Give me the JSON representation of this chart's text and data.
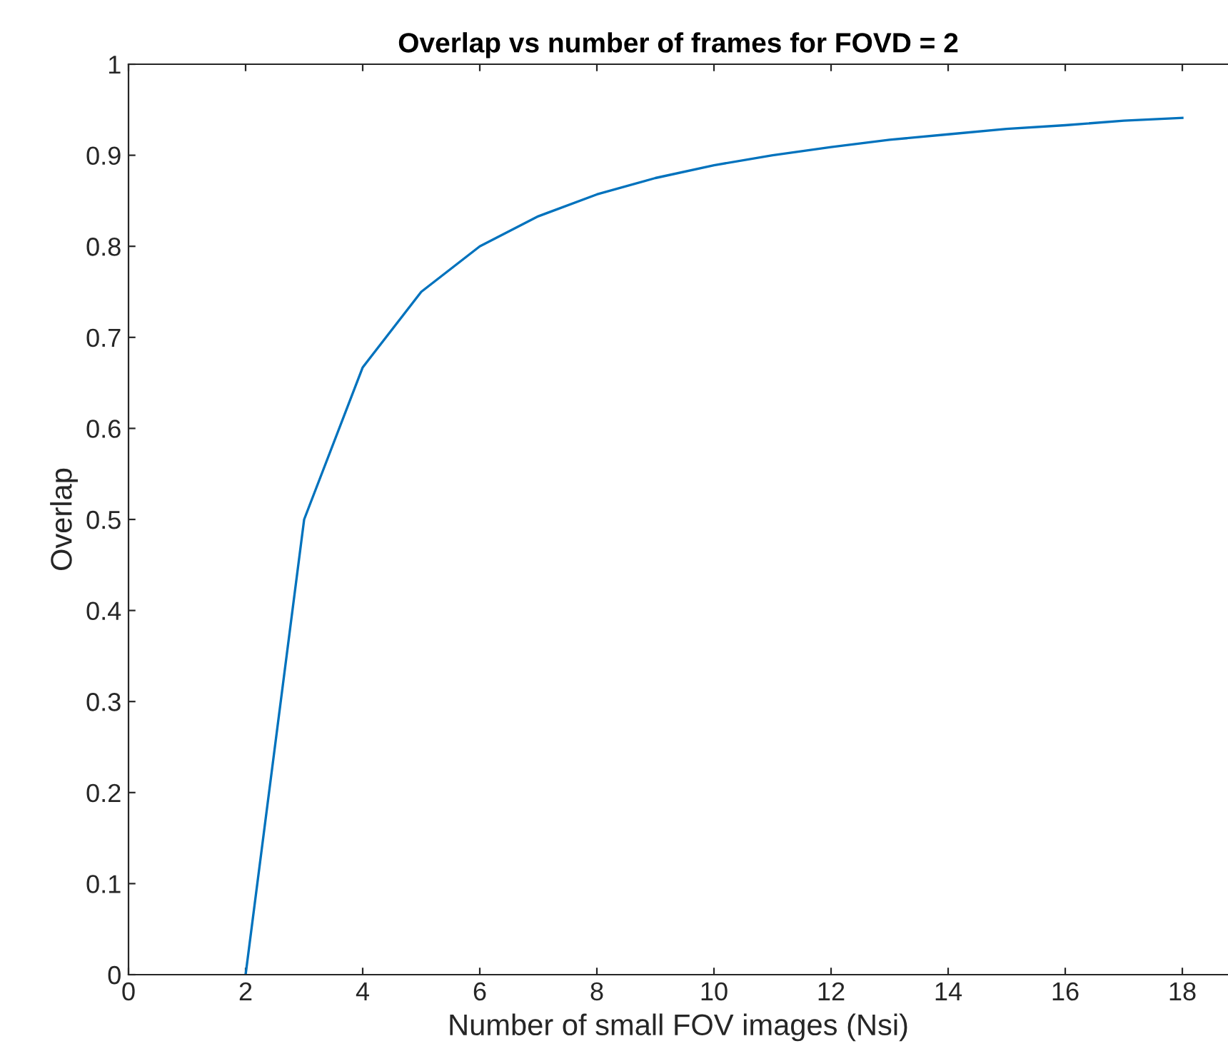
{
  "chart_data": {
    "type": "line",
    "title": "Overlap vs number of frames for FOVD = 2",
    "xlabel": "Number of small FOV images (Nsi)",
    "ylabel": "Overlap",
    "x": [
      2,
      3,
      4,
      5,
      6,
      7,
      8,
      9,
      10,
      11,
      12,
      13,
      14,
      15,
      16,
      17,
      18
    ],
    "series": [
      {
        "color": "#0072bd",
        "values": [
          0,
          0.5,
          0.667,
          0.75,
          0.8,
          0.833,
          0.857,
          0.875,
          0.889,
          0.9,
          0.909,
          0.917,
          0.923,
          0.929,
          0.933,
          0.938,
          0.941
        ]
      }
    ],
    "xlim": [
      0,
      18.78
    ],
    "xticks": [
      0,
      2,
      4,
      6,
      8,
      10,
      12,
      14,
      16,
      18
    ],
    "ylim": [
      0,
      1
    ],
    "yticks": [
      0,
      0.1,
      0.2,
      0.3,
      0.4,
      0.5,
      0.6,
      0.7,
      0.8,
      0.9,
      1
    ],
    "grid": false,
    "legend": false,
    "marker": "none",
    "line_style": "solid"
  }
}
